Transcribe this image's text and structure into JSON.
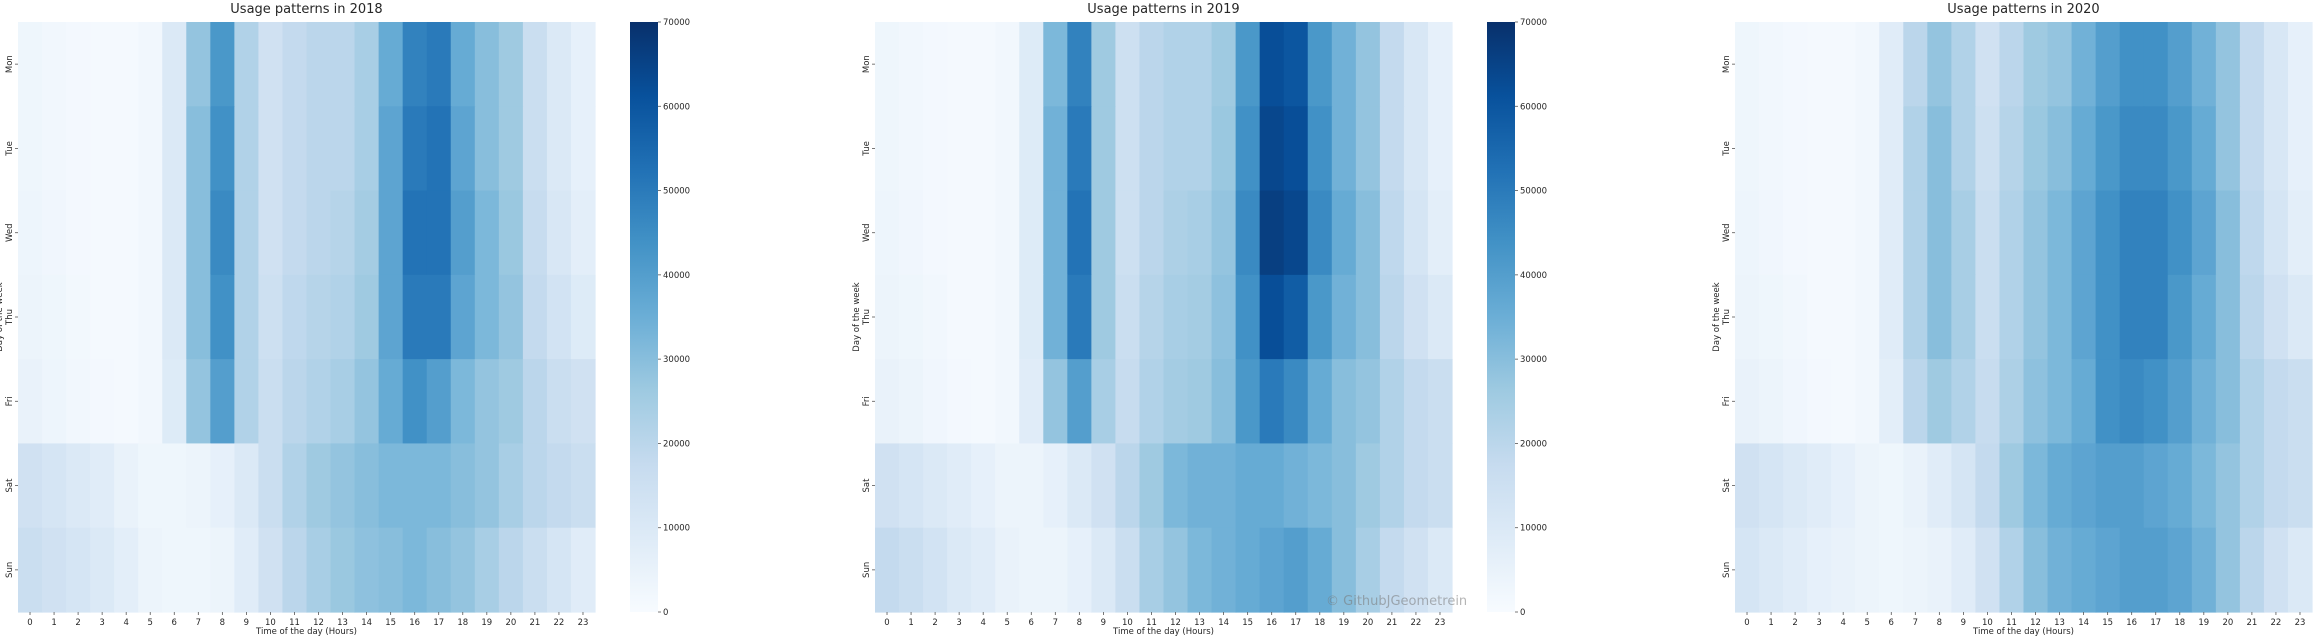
{
  "chart_data": {
    "type": "heatmap",
    "figure": {
      "xlabel": "Time of the day (Hours)",
      "ylabel": "Day of the week",
      "x_categories": [
        "0",
        "1",
        "2",
        "3",
        "4",
        "5",
        "6",
        "7",
        "8",
        "9",
        "10",
        "11",
        "12",
        "13",
        "14",
        "15",
        "16",
        "17",
        "18",
        "19",
        "20",
        "21",
        "22",
        "23"
      ],
      "y_categories": [
        "Mon",
        "Tue",
        "Wed",
        "Thu",
        "Fri",
        "Sat",
        "Sun"
      ],
      "colormap": "Blues",
      "colormap_stops": [
        "#f7fbff",
        "#deebf7",
        "#c6dbef",
        "#9ecae1",
        "#6baed6",
        "#4292c6",
        "#2171b5",
        "#08519c",
        "#08306b"
      ],
      "grid": false
    },
    "panels": [
      {
        "title": "Usage patterns in 2018",
        "colorbar": {
          "vmin": 0,
          "vmax": 70000,
          "ticks": [
            "0",
            "10000",
            "20000",
            "30000",
            "40000",
            "50000",
            "60000",
            "70000"
          ]
        },
        "values": [
          [
            3000,
            2000,
            1500,
            1000,
            1000,
            2000,
            10000,
            28000,
            42000,
            22000,
            14000,
            18000,
            20000,
            20000,
            24000,
            36000,
            48000,
            50000,
            36000,
            30000,
            26000,
            16000,
            10000,
            6000
          ],
          [
            3000,
            2000,
            1500,
            1000,
            1000,
            2000,
            10000,
            30000,
            44000,
            22000,
            14000,
            18000,
            20000,
            20000,
            24000,
            38000,
            50000,
            52000,
            38000,
            30000,
            26000,
            16000,
            10000,
            6000
          ],
          [
            3500,
            2500,
            1500,
            1000,
            1000,
            2000,
            10000,
            30000,
            46000,
            22000,
            14000,
            18000,
            20000,
            21000,
            25000,
            38000,
            52000,
            52000,
            40000,
            32000,
            27000,
            17000,
            11000,
            7000
          ],
          [
            4000,
            3000,
            1800,
            1200,
            1000,
            2000,
            10000,
            30000,
            44000,
            22000,
            15000,
            19000,
            21000,
            22000,
            26000,
            38000,
            50000,
            50000,
            38000,
            32000,
            28000,
            18000,
            13000,
            9000
          ],
          [
            5000,
            3500,
            2000,
            1500,
            1000,
            2000,
            9000,
            28000,
            40000,
            22000,
            16000,
            20000,
            22000,
            24000,
            28000,
            36000,
            44000,
            40000,
            32000,
            28000,
            26000,
            20000,
            16000,
            14000
          ],
          [
            14000,
            12000,
            10000,
            8000,
            5000,
            3000,
            3000,
            4000,
            6000,
            10000,
            16000,
            22000,
            26000,
            28000,
            30000,
            32000,
            32000,
            32000,
            30000,
            28000,
            24000,
            20000,
            18000,
            16000
          ],
          [
            16000,
            14000,
            12000,
            10000,
            7000,
            4000,
            3000,
            3000,
            4000,
            8000,
            14000,
            20000,
            24000,
            27000,
            29000,
            30000,
            32000,
            30000,
            28000,
            24000,
            20000,
            16000,
            12000,
            8000
          ]
        ]
      },
      {
        "title": "Usage patterns in 2019",
        "colorbar": {
          "vmin": 0,
          "vmax": 70000,
          "ticks": [
            "0",
            "10000",
            "20000",
            "30000",
            "40000",
            "50000",
            "60000",
            "70000"
          ]
        },
        "values": [
          [
            3000,
            2000,
            1500,
            1000,
            1000,
            2000,
            9000,
            32000,
            48000,
            26000,
            15000,
            20000,
            22000,
            22000,
            26000,
            42000,
            62000,
            60000,
            42000,
            34000,
            28000,
            18000,
            11000,
            6000
          ],
          [
            3000,
            2000,
            1500,
            1000,
            1000,
            2000,
            9000,
            34000,
            50000,
            26000,
            15000,
            20000,
            22000,
            22000,
            27000,
            44000,
            64000,
            62000,
            44000,
            34000,
            28000,
            18000,
            11000,
            6000
          ],
          [
            3500,
            2500,
            1500,
            1000,
            1000,
            2000,
            9000,
            34000,
            52000,
            26000,
            15000,
            20000,
            23000,
            24000,
            28000,
            46000,
            66000,
            64000,
            46000,
            36000,
            30000,
            19000,
            12000,
            7000
          ],
          [
            4000,
            3000,
            2000,
            1200,
            1000,
            2000,
            9000,
            34000,
            50000,
            26000,
            16000,
            21000,
            24000,
            25000,
            29000,
            44000,
            62000,
            58000,
            42000,
            34000,
            30000,
            20000,
            14000,
            10000
          ],
          [
            5000,
            4000,
            2500,
            1500,
            1000,
            2000,
            8000,
            28000,
            40000,
            24000,
            17000,
            22000,
            25000,
            26000,
            30000,
            42000,
            50000,
            46000,
            36000,
            30000,
            28000,
            22000,
            18000,
            16000
          ],
          [
            14000,
            12000,
            10000,
            8000,
            6000,
            4000,
            4000,
            6000,
            10000,
            14000,
            20000,
            26000,
            32000,
            34000,
            34000,
            36000,
            36000,
            34000,
            32000,
            30000,
            26000,
            22000,
            18000,
            16000
          ],
          [
            18000,
            16000,
            13000,
            10000,
            8000,
            5000,
            4000,
            4000,
            6000,
            10000,
            16000,
            24000,
            28000,
            32000,
            34000,
            36000,
            38000,
            40000,
            36000,
            30000,
            24000,
            18000,
            14000,
            10000
          ]
        ]
      },
      {
        "title": "Usage patterns in 2020",
        "colorbar": null,
        "values": [
          [
            3000,
            2000,
            1500,
            1000,
            1000,
            2000,
            8000,
            20000,
            28000,
            22000,
            14000,
            20000,
            26000,
            28000,
            34000,
            40000,
            44000,
            44000,
            40000,
            34000,
            28000,
            18000,
            11000,
            6000
          ],
          [
            3000,
            2000,
            1500,
            1000,
            1000,
            2000,
            8000,
            22000,
            30000,
            22000,
            15000,
            21000,
            27000,
            30000,
            36000,
            42000,
            46000,
            46000,
            42000,
            36000,
            28000,
            18000,
            11000,
            6000
          ],
          [
            3500,
            2500,
            1500,
            1000,
            1000,
            2000,
            8000,
            22000,
            30000,
            24000,
            16000,
            22000,
            28000,
            32000,
            38000,
            44000,
            48000,
            48000,
            44000,
            38000,
            30000,
            19000,
            12000,
            7000
          ],
          [
            4000,
            3000,
            2000,
            1200,
            1000,
            2000,
            8000,
            22000,
            30000,
            24000,
            16000,
            22000,
            28000,
            32000,
            38000,
            44000,
            48000,
            48000,
            42000,
            36000,
            30000,
            20000,
            14000,
            10000
          ],
          [
            5000,
            4000,
            2500,
            1500,
            1000,
            2000,
            7000,
            20000,
            26000,
            22000,
            17000,
            23000,
            29000,
            32000,
            36000,
            44000,
            46000,
            44000,
            40000,
            34000,
            30000,
            22000,
            18000,
            16000
          ],
          [
            14000,
            12000,
            10000,
            8000,
            6000,
            4000,
            3000,
            5000,
            8000,
            12000,
            18000,
            26000,
            32000,
            36000,
            38000,
            40000,
            40000,
            38000,
            36000,
            32000,
            28000,
            22000,
            18000,
            16000
          ],
          [
            12000,
            10000,
            8000,
            6000,
            5000,
            4000,
            3000,
            4000,
            5000,
            8000,
            14000,
            22000,
            30000,
            34000,
            36000,
            38000,
            40000,
            40000,
            38000,
            34000,
            28000,
            20000,
            14000,
            10000
          ]
        ]
      }
    ]
  },
  "watermark": "© GithubJGeometrein"
}
